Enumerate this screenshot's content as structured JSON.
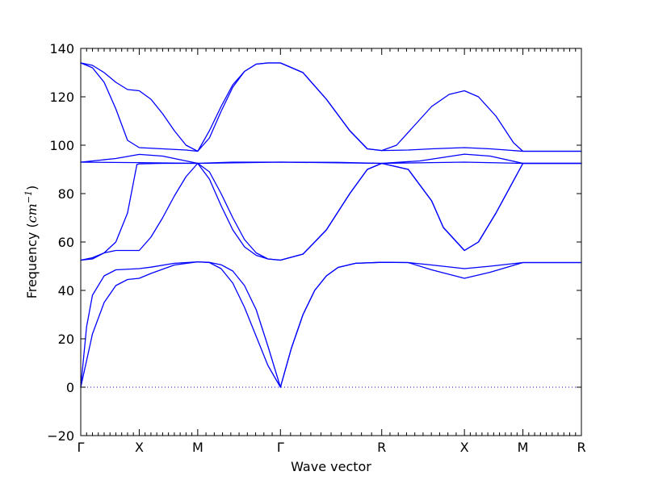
{
  "chart_data": {
    "type": "line",
    "title": "",
    "xlabel": "Wave vector",
    "ylabel": "Frequency (cm⁻¹)",
    "ylabel_prefix": "Frequency (",
    "ylabel_unit": "cm",
    "ylabel_exp": "−1",
    "ylabel_suffix": ")",
    "ylim": [
      -20,
      140
    ],
    "yticks": [
      -20,
      0,
      20,
      40,
      60,
      80,
      100,
      120,
      140
    ],
    "grid": false,
    "line_color": "#0000ff",
    "zero_line": {
      "y": 0,
      "style": "dotted",
      "color": "#0000ff"
    },
    "x_path": [
      {
        "label": "Γ",
        "x": 0.0
      },
      {
        "label": "X",
        "x": 0.5
      },
      {
        "label": "M",
        "x": 1.0
      },
      {
        "label": "Γ",
        "x": 1.7071
      },
      {
        "label": "R",
        "x": 2.5731
      },
      {
        "label": "X",
        "x": 3.2802
      },
      {
        "label": "M",
        "x": 3.7802
      },
      {
        "label": "R",
        "x": 4.2802
      }
    ],
    "series": [
      {
        "values": [
          [
            0.0,
            0
          ],
          [
            0.1,
            22
          ],
          [
            0.2,
            35
          ],
          [
            0.3,
            42
          ],
          [
            0.4,
            44.5
          ],
          [
            0.5,
            45
          ],
          [
            0.6,
            47
          ],
          [
            0.8,
            50.5
          ],
          [
            1.0,
            51.8
          ],
          [
            1.1,
            51.5
          ],
          [
            1.2,
            49
          ],
          [
            1.3,
            43
          ],
          [
            1.4,
            33
          ],
          [
            1.5,
            21
          ],
          [
            1.6,
            9
          ],
          [
            1.7071,
            0
          ],
          [
            1.8,
            16
          ],
          [
            1.9,
            30
          ],
          [
            2.0,
            40
          ],
          [
            2.1,
            46
          ],
          [
            2.2,
            49.5
          ],
          [
            2.35,
            51.2
          ],
          [
            2.5731,
            51.6
          ],
          [
            2.8,
            51.5
          ],
          [
            3.0,
            48.5
          ],
          [
            3.2802,
            45
          ],
          [
            3.5,
            47.5
          ],
          [
            3.7802,
            51.5
          ],
          [
            4.2802,
            51.5
          ]
        ]
      },
      {
        "values": [
          [
            0.0,
            0
          ],
          [
            0.05,
            25
          ],
          [
            0.1,
            38
          ],
          [
            0.2,
            46
          ],
          [
            0.3,
            48.5
          ],
          [
            0.5,
            49
          ],
          [
            0.6,
            49.6
          ],
          [
            0.8,
            51.2
          ],
          [
            1.0,
            51.8
          ],
          [
            1.1,
            51.6
          ],
          [
            1.2,
            50.6
          ],
          [
            1.3,
            48
          ],
          [
            1.4,
            42
          ],
          [
            1.5,
            32
          ],
          [
            1.6,
            17
          ],
          [
            1.7071,
            0
          ],
          [
            1.8,
            16
          ],
          [
            1.9,
            30
          ],
          [
            2.0,
            40
          ],
          [
            2.1,
            46
          ],
          [
            2.2,
            49.5
          ],
          [
            2.35,
            51.2
          ],
          [
            2.5731,
            51.6
          ],
          [
            2.8,
            51.5
          ],
          [
            3.0,
            50.5
          ],
          [
            3.2802,
            49
          ],
          [
            3.5,
            50
          ],
          [
            3.7802,
            51.5
          ],
          [
            4.2802,
            51.5
          ]
        ]
      },
      {
        "values": [
          [
            0.0,
            52.5
          ],
          [
            0.1,
            53
          ],
          [
            0.2,
            55.5
          ],
          [
            0.3,
            60
          ],
          [
            0.4,
            72
          ],
          [
            0.48,
            92
          ],
          [
            0.5,
            92.3
          ],
          [
            0.7,
            92.5
          ],
          [
            1.0,
            92.5
          ],
          [
            1.1,
            89
          ],
          [
            1.2,
            80
          ],
          [
            1.3,
            70
          ],
          [
            1.4,
            61
          ],
          [
            1.5,
            55.5
          ],
          [
            1.6,
            53
          ],
          [
            1.7071,
            52.5
          ],
          [
            1.9,
            55
          ],
          [
            2.1,
            65
          ],
          [
            2.3,
            80
          ],
          [
            2.45,
            90
          ],
          [
            2.5731,
            92.5
          ],
          [
            2.8,
            90
          ],
          [
            3.0,
            77
          ],
          [
            3.1,
            66
          ],
          [
            3.2802,
            56.5
          ],
          [
            3.4,
            60
          ],
          [
            3.55,
            72
          ],
          [
            3.7802,
            92.5
          ],
          [
            4.2802,
            92.5
          ]
        ]
      },
      {
        "values": [
          [
            0.0,
            52.5
          ],
          [
            0.1,
            53.5
          ],
          [
            0.2,
            55.5
          ],
          [
            0.3,
            56.5
          ],
          [
            0.4,
            56.5
          ],
          [
            0.5,
            56.5
          ],
          [
            0.6,
            62
          ],
          [
            0.7,
            70
          ],
          [
            0.8,
            79
          ],
          [
            0.9,
            87
          ],
          [
            1.0,
            92.5
          ],
          [
            1.1,
            86
          ],
          [
            1.2,
            75
          ],
          [
            1.3,
            65
          ],
          [
            1.4,
            58
          ],
          [
            1.5,
            54.5
          ],
          [
            1.6,
            53
          ],
          [
            1.7071,
            52.5
          ],
          [
            1.9,
            55
          ],
          [
            2.1,
            65
          ],
          [
            2.3,
            80
          ],
          [
            2.45,
            90
          ],
          [
            2.5731,
            92.5
          ],
          [
            2.8,
            90
          ],
          [
            3.0,
            77
          ],
          [
            3.1,
            66
          ],
          [
            3.2802,
            56.5
          ],
          [
            3.4,
            60
          ],
          [
            3.55,
            72
          ],
          [
            3.7802,
            92.5
          ],
          [
            4.2802,
            92.5
          ]
        ]
      },
      {
        "values": [
          [
            0.0,
            93
          ],
          [
            0.5,
            92.8
          ],
          [
            1.0,
            92.5
          ],
          [
            1.7071,
            93
          ],
          [
            2.5731,
            92.5
          ],
          [
            3.2802,
            93
          ],
          [
            3.7802,
            92.5
          ],
          [
            4.2802,
            92.5
          ]
        ]
      },
      {
        "values": [
          [
            0.0,
            93
          ],
          [
            0.3,
            94.5
          ],
          [
            0.5,
            96.2
          ],
          [
            0.7,
            95.5
          ],
          [
            1.0,
            92.5
          ],
          [
            1.3,
            93
          ],
          [
            1.7071,
            93
          ],
          [
            2.2,
            92.9
          ],
          [
            2.5731,
            92.5
          ],
          [
            2.9,
            93.5
          ],
          [
            3.2802,
            96.3
          ],
          [
            3.5,
            95.5
          ],
          [
            3.7802,
            92.5
          ],
          [
            4.2802,
            92.5
          ]
        ]
      },
      {
        "values": [
          [
            0.0,
            134
          ],
          [
            0.1,
            132
          ],
          [
            0.2,
            126
          ],
          [
            0.3,
            115
          ],
          [
            0.4,
            102
          ],
          [
            0.5,
            99
          ],
          [
            0.7,
            98.5
          ],
          [
            0.9,
            98
          ],
          [
            1.0,
            97.5
          ],
          [
            1.1,
            103
          ],
          [
            1.2,
            114
          ],
          [
            1.3,
            124
          ],
          [
            1.4,
            130.5
          ],
          [
            1.5,
            133.5
          ],
          [
            1.6,
            134
          ],
          [
            1.7071,
            134
          ],
          [
            1.9,
            130
          ],
          [
            2.1,
            119
          ],
          [
            2.3,
            106
          ],
          [
            2.45,
            98.5
          ],
          [
            2.5731,
            97.8
          ],
          [
            2.8,
            98
          ],
          [
            3.0,
            98.5
          ],
          [
            3.2802,
            99
          ],
          [
            3.5,
            98.5
          ],
          [
            3.7802,
            97.5
          ],
          [
            4.2802,
            97.5
          ]
        ]
      },
      {
        "values": [
          [
            0.0,
            134
          ],
          [
            0.1,
            133
          ],
          [
            0.2,
            130
          ],
          [
            0.3,
            126
          ],
          [
            0.4,
            123
          ],
          [
            0.5,
            122.5
          ],
          [
            0.6,
            119
          ],
          [
            0.7,
            113
          ],
          [
            0.8,
            106
          ],
          [
            0.9,
            100
          ],
          [
            1.0,
            97.5
          ],
          [
            1.1,
            106
          ],
          [
            1.2,
            116
          ],
          [
            1.3,
            125
          ],
          [
            1.4,
            130.5
          ],
          [
            1.5,
            133.5
          ],
          [
            1.6,
            134
          ],
          [
            1.7071,
            134
          ],
          [
            1.9,
            130
          ],
          [
            2.1,
            119
          ],
          [
            2.3,
            106
          ],
          [
            2.45,
            98.5
          ],
          [
            2.5731,
            97.8
          ],
          [
            2.7,
            100
          ],
          [
            2.85,
            108
          ],
          [
            3.0,
            116
          ],
          [
            3.15,
            121
          ],
          [
            3.2802,
            122.5
          ],
          [
            3.4,
            120
          ],
          [
            3.55,
            112
          ],
          [
            3.7,
            101
          ],
          [
            3.7802,
            97.5
          ],
          [
            4.2802,
            97.5
          ]
        ]
      }
    ]
  }
}
